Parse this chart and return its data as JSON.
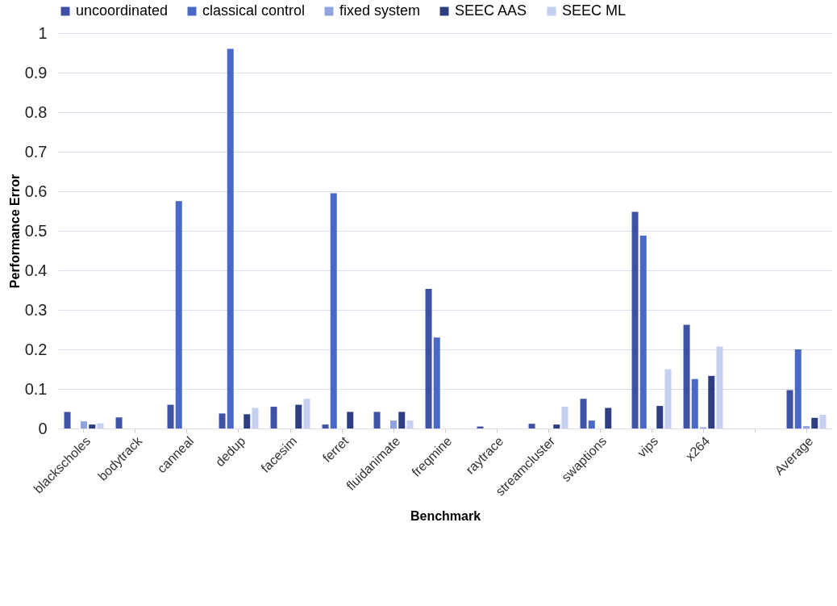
{
  "chart_data": {
    "type": "bar",
    "xlabel": "Benchmark",
    "ylabel": "Performance Error",
    "categories": [
      "blackscholes",
      "bodytrack",
      "canneal",
      "dedup",
      "facesim",
      "ferret",
      "fluidanimate",
      "freqmine",
      "raytrace",
      "streamcluster",
      "swaptions",
      "vips",
      "x264",
      null,
      "Average"
    ],
    "series": [
      {
        "name": "uncoordinated",
        "color": "#3f51a3",
        "values": [
          0.042,
          0.028,
          0.06,
          0.038,
          0.055,
          0.01,
          0.042,
          0.353,
          0.005,
          0.012,
          0.075,
          0.548,
          0.262,
          null,
          0.097
        ]
      },
      {
        "name": "classical control",
        "color": "#4a68c8",
        "values": [
          0,
          0,
          0.575,
          0.96,
          0,
          0.595,
          0,
          0.23,
          0,
          0,
          0.02,
          0.488,
          0.125,
          null,
          0.2
        ]
      },
      {
        "name": "fixed system",
        "color": "#8ea3e0",
        "values": [
          0.018,
          0,
          0,
          0,
          0,
          0,
          0.02,
          0,
          0,
          0,
          0,
          0,
          0.003,
          null,
          0.006
        ]
      },
      {
        "name": "SEEC AAS",
        "color": "#2e3f7f",
        "values": [
          0.01,
          0,
          0,
          0.036,
          0.06,
          0.042,
          0.042,
          0,
          0,
          0.01,
          0.052,
          0.057,
          0.133,
          null,
          0.027
        ]
      },
      {
        "name": "SEEC ML",
        "color": "#c5cff0",
        "values": [
          0.013,
          0,
          0,
          0.052,
          0.075,
          0,
          0.02,
          0,
          0,
          0.055,
          0,
          0.15,
          0.207,
          null,
          0.035
        ]
      }
    ],
    "ylim": [
      0,
      1
    ],
    "yticks": [
      0,
      0.1,
      0.2,
      0.3,
      0.4,
      0.5,
      0.6,
      0.7,
      0.8,
      0.9,
      1
    ],
    "grid": "y",
    "legend": "top"
  }
}
